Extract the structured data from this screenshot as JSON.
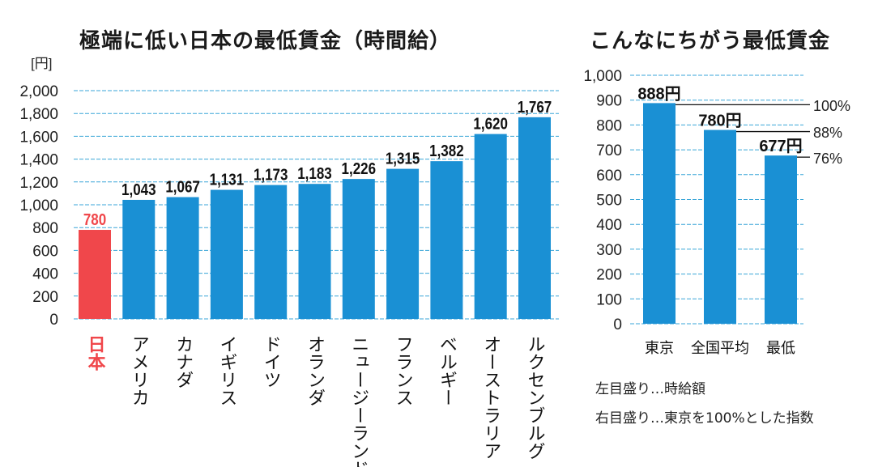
{
  "chart_data": [
    {
      "type": "bar",
      "title": "極端に低い日本の最低賃金（時間給）",
      "ylabel": "[円]",
      "ylim": [
        0,
        2000
      ],
      "yticks": [
        "0",
        "200",
        "400",
        "600",
        "800",
        "1,000",
        "1,200",
        "1,400",
        "1,600",
        "1,800",
        "2,000"
      ],
      "grid": true,
      "categories": [
        "日本",
        "アメリカ",
        "カナダ",
        "イギリス",
        "ドイツ",
        "オランダ",
        "ニュージーランド",
        "フランス",
        "ベルギー",
        "オーストラリア",
        "ルクセンブルグ"
      ],
      "values": [
        780,
        1043,
        1067,
        1131,
        1173,
        1183,
        1226,
        1315,
        1382,
        1620,
        1767
      ],
      "labels": [
        "780",
        "1,043",
        "1,067",
        "1,131",
        "1,173",
        "1,183",
        "1,226",
        "1,315",
        "1,382",
        "1,620",
        "1,767"
      ],
      "highlight": {
        "index": 0,
        "color": "#f0474b"
      },
      "bar_color": "#1a90d4"
    },
    {
      "type": "bar",
      "title": "こんなにちがう最低賃金",
      "ylim": [
        0,
        1000
      ],
      "yticks": [
        "0",
        "100",
        "200",
        "300",
        "400",
        "500",
        "600",
        "700",
        "800",
        "900",
        "1,000"
      ],
      "grid": true,
      "categories": [
        "東京",
        "全国平均",
        "最低"
      ],
      "values": [
        888,
        780,
        677
      ],
      "labels": [
        "888円",
        "780円",
        "677円"
      ],
      "index_labels": [
        "100%",
        "88%",
        "76%"
      ],
      "bar_color": "#1a90d4",
      "notes": [
        "左目盛り…時給額",
        "右目盛り…東京を100%とした指数"
      ]
    }
  ]
}
